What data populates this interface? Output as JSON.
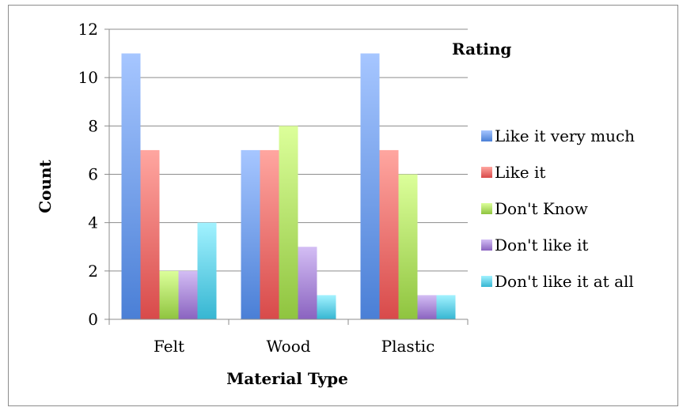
{
  "chart_data": {
    "type": "bar",
    "categories": [
      "Felt",
      "Wood",
      "Plastic"
    ],
    "series": [
      {
        "name": "Like it very much",
        "values": [
          11,
          7,
          11
        ],
        "color": "#4a7fd6",
        "color_light": "#a6c6ff"
      },
      {
        "name": "Like it",
        "values": [
          7,
          7,
          7
        ],
        "color": "#d84a4a",
        "color_light": "#ffa6a0"
      },
      {
        "name": "Don't Know",
        "values": [
          2,
          8,
          6
        ],
        "color": "#8fc43f",
        "color_light": "#dcff9a"
      },
      {
        "name": "Don't like it",
        "values": [
          2,
          3,
          1
        ],
        "color": "#8a63c0",
        "color_light": "#d3bdf4"
      },
      {
        "name": "Don't like it at all",
        "values": [
          4,
          1,
          1
        ],
        "color": "#36b6d2",
        "color_light": "#a2f2ff"
      }
    ],
    "xlabel": "Material Type",
    "ylabel": "Count",
    "legend_title": "Rating",
    "ylim": [
      0,
      12
    ],
    "yticks": [
      0,
      2,
      4,
      6,
      8,
      10,
      12
    ],
    "grid": true,
    "legend_position": "right"
  }
}
